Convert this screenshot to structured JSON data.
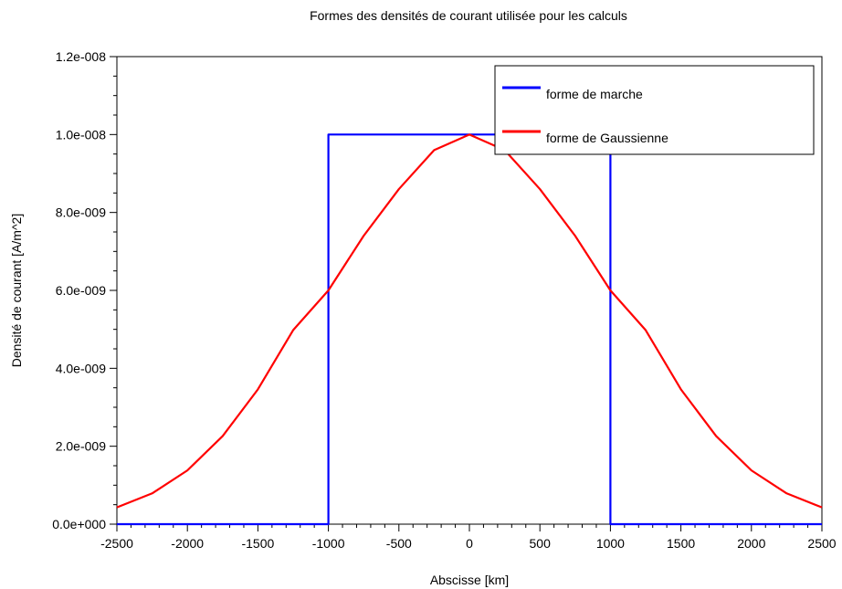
{
  "chart_data": {
    "type": "line",
    "title": "Formes des densités de courant utilisée pour les calculs",
    "xlabel": "Abscisse [km]",
    "ylabel": "Densité de courant [A/m^2]",
    "xlim": [
      -2500,
      2500
    ],
    "ylim": [
      0,
      1.2e-08
    ],
    "x_ticks": [
      -2500,
      -2000,
      -1500,
      -1000,
      -500,
      0,
      500,
      1000,
      1500,
      2000,
      2500
    ],
    "x_tick_labels": [
      "-2500",
      "-2000",
      "-1500",
      "-1000",
      "-500",
      "0",
      "500",
      "1000",
      "1500",
      "2000",
      "2500"
    ],
    "y_ticks": [
      0,
      2e-09,
      4e-09,
      6e-09,
      8e-09,
      1e-08,
      1.2e-08
    ],
    "y_tick_labels": [
      "0.0e+000",
      "2.0e-009",
      "4.0e-009",
      "6.0e-009",
      "8.0e-009",
      "1.0e-008",
      "1.2e-008"
    ],
    "grid": false,
    "legend_position": "top-right",
    "series": [
      {
        "name": "forme de marche",
        "color": "#0000ff",
        "x": [
          -2500,
          -1000,
          -1000,
          1000,
          1000,
          2500
        ],
        "y": [
          0,
          0,
          1e-08,
          1e-08,
          0,
          0
        ]
      },
      {
        "name": "forme de Gaussienne",
        "color": "#ff0000",
        "x": [
          -2500,
          -2250,
          -2000,
          -1750,
          -1500,
          -1250,
          -1000,
          -750,
          -500,
          -250,
          0,
          250,
          500,
          750,
          1000,
          1250,
          1500,
          1750,
          2000,
          2250,
          2500
        ],
        "y": [
          4.3e-10,
          7.9e-10,
          1.38e-09,
          2.26e-09,
          3.46e-09,
          4.98e-09,
          6e-09,
          7.4e-09,
          8.6e-09,
          9.6e-09,
          1e-08,
          9.6e-09,
          8.6e-09,
          7.4e-09,
          6e-09,
          4.98e-09,
          3.46e-09,
          2.26e-09,
          1.38e-09,
          7.9e-10,
          4.3e-10
        ]
      }
    ]
  }
}
